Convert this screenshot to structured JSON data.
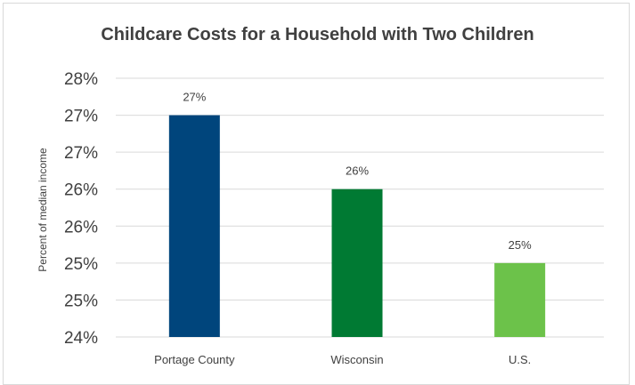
{
  "chart_data": {
    "type": "bar",
    "title": "Childcare Costs for a Household with Two Children",
    "xlabel": "",
    "ylabel": "Percent of median income",
    "categories": [
      "Portage County",
      "Wisconsin",
      "U.S."
    ],
    "values": [
      27,
      26,
      25
    ],
    "data_labels": [
      "27%",
      "26%",
      "25%"
    ],
    "colors": [
      "#00457c",
      "#007a33",
      "#6cc24a"
    ],
    "ylim": [
      24,
      27.5
    ],
    "y_tick_values": [
      24,
      24.5,
      25,
      25.5,
      26,
      26.5,
      27,
      27.5
    ],
    "y_tick_labels": [
      "24%",
      "25%",
      "25%",
      "26%",
      "26%",
      "27%",
      "27%",
      "28%"
    ],
    "grid": true,
    "legend": "none"
  }
}
